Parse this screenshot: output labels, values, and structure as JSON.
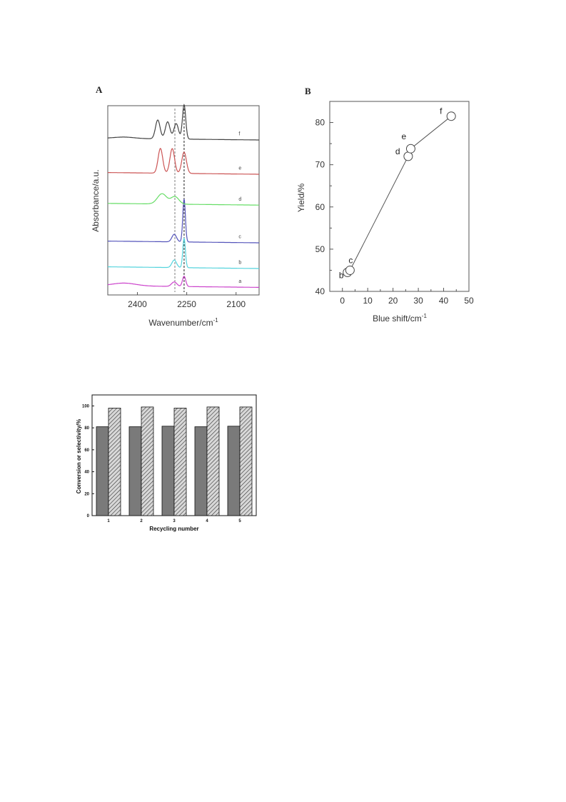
{
  "chart_data": [
    {
      "type": "line",
      "panel_label": "A",
      "xlabel": "Wavenumber/cm",
      "xlabel_sup": "-1",
      "ylabel": "Absorbance/a.u.",
      "x_reversed": true,
      "xlim": [
        2490,
        2030
      ],
      "x_ticks": [
        2400,
        2250,
        2100
      ],
      "reference_lines_x": [
        2258,
        2286
      ],
      "series": [
        {
          "name": "a",
          "color": "#cc44cc",
          "offset": 0.0,
          "peaks": [
            {
              "x": 2258,
              "h": 0.3,
              "w": 5
            },
            {
              "x": 2288,
              "h": 0.13,
              "w": 8
            },
            {
              "x": 2440,
              "h": 0.08,
              "w": 35
            }
          ]
        },
        {
          "name": "b",
          "color": "#55d4dd",
          "offset": 0.55,
          "peaks": [
            {
              "x": 2258,
              "h": 0.85,
              "w": 4
            },
            {
              "x": 2288,
              "h": 0.22,
              "w": 7
            }
          ]
        },
        {
          "name": "c",
          "color": "#5555bb",
          "offset": 1.3,
          "peaks": [
            {
              "x": 2258,
              "h": 1.25,
              "w": 4
            },
            {
              "x": 2288,
              "h": 0.22,
              "w": 7
            }
          ]
        },
        {
          "name": "d",
          "color": "#66dd66",
          "offset": 2.4,
          "peaks": [
            {
              "x": 2286,
              "h": 0.22,
              "w": 12
            },
            {
              "x": 2325,
              "h": 0.3,
              "w": 14
            }
          ]
        },
        {
          "name": "e",
          "color": "#cc5555",
          "offset": 3.3,
          "peaks": [
            {
              "x": 2258,
              "h": 0.62,
              "w": 7
            },
            {
              "x": 2294,
              "h": 0.72,
              "w": 7
            },
            {
              "x": 2330,
              "h": 0.72,
              "w": 7
            }
          ]
        },
        {
          "name": "f",
          "color": "#444444",
          "offset": 4.3,
          "peaks": [
            {
              "x": 2258,
              "h": 1.0,
              "w": 5
            },
            {
              "x": 2282,
              "h": 0.45,
              "w": 7
            },
            {
              "x": 2308,
              "h": 0.5,
              "w": 7
            },
            {
              "x": 2338,
              "h": 0.55,
              "w": 7
            },
            {
              "x": 2440,
              "h": 0.04,
              "w": 30
            }
          ]
        }
      ]
    },
    {
      "type": "scatter",
      "panel_label": "B",
      "xlabel": "Blue shift/cm",
      "xlabel_sup": "-1",
      "ylabel": "Yield/%",
      "xlim": [
        -5,
        50
      ],
      "ylim": [
        40,
        85
      ],
      "x_ticks": [
        0,
        10,
        20,
        30,
        40,
        50
      ],
      "y_ticks": [
        40,
        50,
        60,
        70,
        80
      ],
      "points": [
        {
          "label": "b",
          "x": 2.0,
          "y": 44.5
        },
        {
          "label": "c",
          "x": 3.0,
          "y": 45.0
        },
        {
          "label": "d",
          "x": 26.0,
          "y": 72.0
        },
        {
          "label": "e",
          "x": 27.0,
          "y": 73.8
        },
        {
          "label": "f",
          "x": 43.0,
          "y": 81.5
        }
      ]
    },
    {
      "type": "bar",
      "xlabel": "Recycling number",
      "ylabel": "Conversion or selectivity/%",
      "categories": [
        "1",
        "2",
        "3",
        "4",
        "5"
      ],
      "ylim": [
        0,
        110
      ],
      "y_ticks": [
        0,
        20,
        40,
        60,
        80,
        100
      ],
      "series": [
        {
          "values": [
            81,
            81,
            81.5,
            81,
            81.5
          ],
          "color": "#7a7a7a",
          "pattern": "solid"
        },
        {
          "values": [
            98,
            99,
            98,
            99,
            99
          ],
          "color": "#cccccc",
          "pattern": "hatched"
        }
      ]
    }
  ]
}
